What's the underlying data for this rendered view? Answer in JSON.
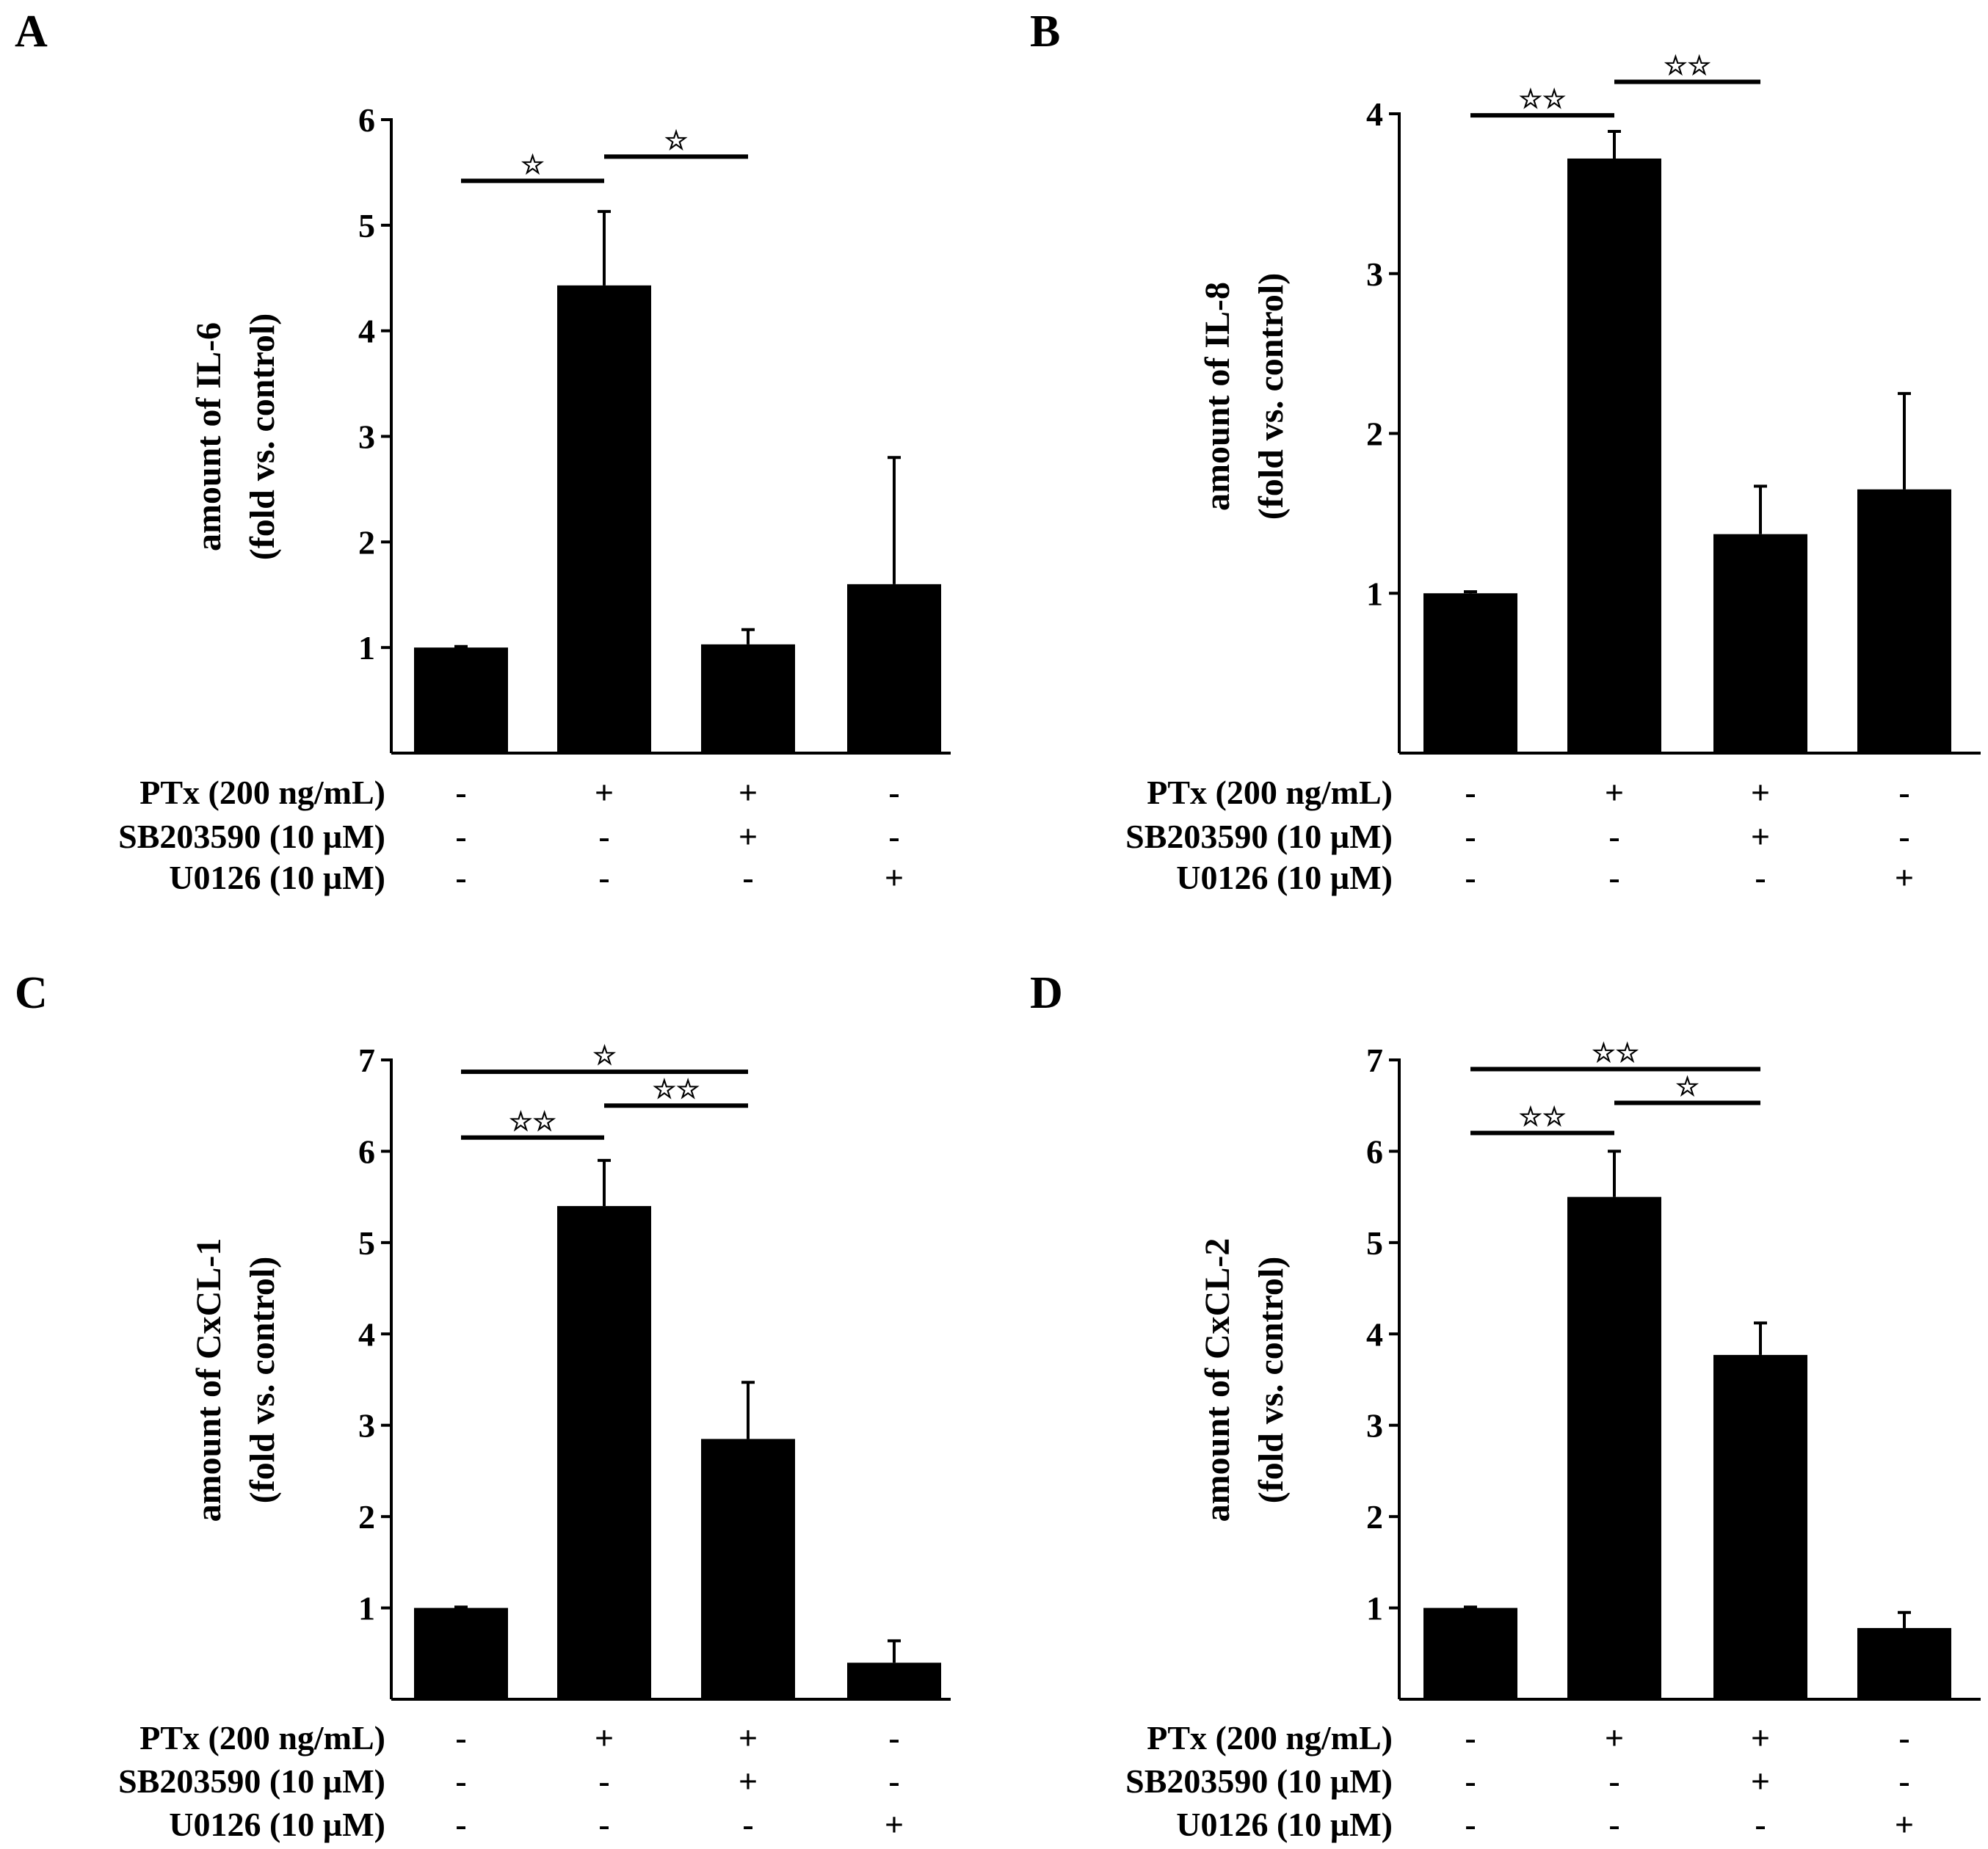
{
  "chart_data": [
    {
      "type": "bar",
      "panel_label": "A",
      "ylabel_line1": "amount of IL-6",
      "ylabel_line2": "(fold vs. control)",
      "ylim": [
        0,
        6
      ],
      "yticks": [
        1,
        2,
        3,
        4,
        5,
        6
      ],
      "values": [
        1.0,
        4.43,
        1.03,
        1.6
      ],
      "errors": [
        0.01,
        0.7,
        0.14,
        1.2
      ],
      "conditions": [
        {
          "label": "PTx (200 ng/mL)",
          "signs": [
            "-",
            "+",
            "+",
            "-"
          ]
        },
        {
          "label": "SB203590 (10 µM)",
          "signs": [
            "-",
            "-",
            "+",
            "-"
          ]
        },
        {
          "label": "U0126 (10 µM)",
          "signs": [
            "-",
            "-",
            "-",
            "+"
          ]
        }
      ],
      "significance": [
        {
          "from": 0,
          "to": 1,
          "y": 5.42,
          "stars": "☆"
        },
        {
          "from": 1,
          "to": 2,
          "y": 5.65,
          "stars": "☆"
        }
      ]
    },
    {
      "type": "bar",
      "panel_label": "B",
      "ylabel_line1": "amount of IL-8",
      "ylabel_line2": "(fold vs. control)",
      "ylim": [
        0,
        4
      ],
      "yticks": [
        1,
        2,
        3,
        4
      ],
      "values": [
        1.0,
        3.72,
        1.37,
        1.65
      ],
      "errors": [
        0.01,
        0.17,
        0.3,
        0.6
      ],
      "conditions": [
        {
          "label": "PTx (200 ng/mL)",
          "signs": [
            "-",
            "+",
            "+",
            "-"
          ]
        },
        {
          "label": "SB203590 (10 µM)",
          "signs": [
            "-",
            "-",
            "+",
            "-"
          ]
        },
        {
          "label": "U0126 (10 µM)",
          "signs": [
            "-",
            "-",
            "-",
            "+"
          ]
        }
      ],
      "significance": [
        {
          "from": 0,
          "to": 1,
          "y": 3.99,
          "stars": "☆☆"
        },
        {
          "from": 1,
          "to": 2,
          "y": 4.2,
          "stars": "☆☆"
        }
      ]
    },
    {
      "type": "bar",
      "panel_label": "C",
      "ylabel_line1": "amount of CxCL-1",
      "ylabel_line2": "(fold vs. control)",
      "ylim": [
        0,
        7
      ],
      "yticks": [
        1,
        2,
        3,
        4,
        5,
        6,
        7
      ],
      "values": [
        1.0,
        5.4,
        2.85,
        0.4
      ],
      "errors": [
        0.01,
        0.5,
        0.62,
        0.24
      ],
      "conditions": [
        {
          "label": "PTx (200 ng/mL)",
          "signs": [
            "-",
            "+",
            "+",
            "-"
          ]
        },
        {
          "label": "SB203590 (10 µM)",
          "signs": [
            "-",
            "-",
            "+",
            "-"
          ]
        },
        {
          "label": "U0126 (10 µM)",
          "signs": [
            "-",
            "-",
            "-",
            "+"
          ]
        }
      ],
      "significance": [
        {
          "from": 0,
          "to": 1,
          "y": 6.15,
          "stars": "☆☆"
        },
        {
          "from": 1,
          "to": 2,
          "y": 6.5,
          "stars": "☆☆"
        },
        {
          "from": 0,
          "to": 2,
          "y": 6.87,
          "stars": "☆"
        }
      ]
    },
    {
      "type": "bar",
      "panel_label": "D",
      "ylabel_line1": "amount of CxCL-2",
      "ylabel_line2": "(fold vs. control)",
      "ylim": [
        0,
        7
      ],
      "yticks": [
        1,
        2,
        3,
        4,
        5,
        6,
        7
      ],
      "values": [
        1.0,
        5.5,
        3.77,
        0.78
      ],
      "errors": [
        0.01,
        0.5,
        0.35,
        0.17
      ],
      "conditions": [
        {
          "label": "PTx (200 ng/mL)",
          "signs": [
            "-",
            "+",
            "+",
            "-"
          ]
        },
        {
          "label": "SB203590 (10 µM)",
          "signs": [
            "-",
            "-",
            "+",
            "-"
          ]
        },
        {
          "label": "U0126 (10 µM)",
          "signs": [
            "-",
            "-",
            "-",
            "+"
          ]
        }
      ],
      "significance": [
        {
          "from": 0,
          "to": 1,
          "y": 6.2,
          "stars": "☆☆"
        },
        {
          "from": 1,
          "to": 2,
          "y": 6.53,
          "stars": "☆"
        },
        {
          "from": 0,
          "to": 2,
          "y": 6.9,
          "stars": "☆☆"
        }
      ]
    }
  ]
}
